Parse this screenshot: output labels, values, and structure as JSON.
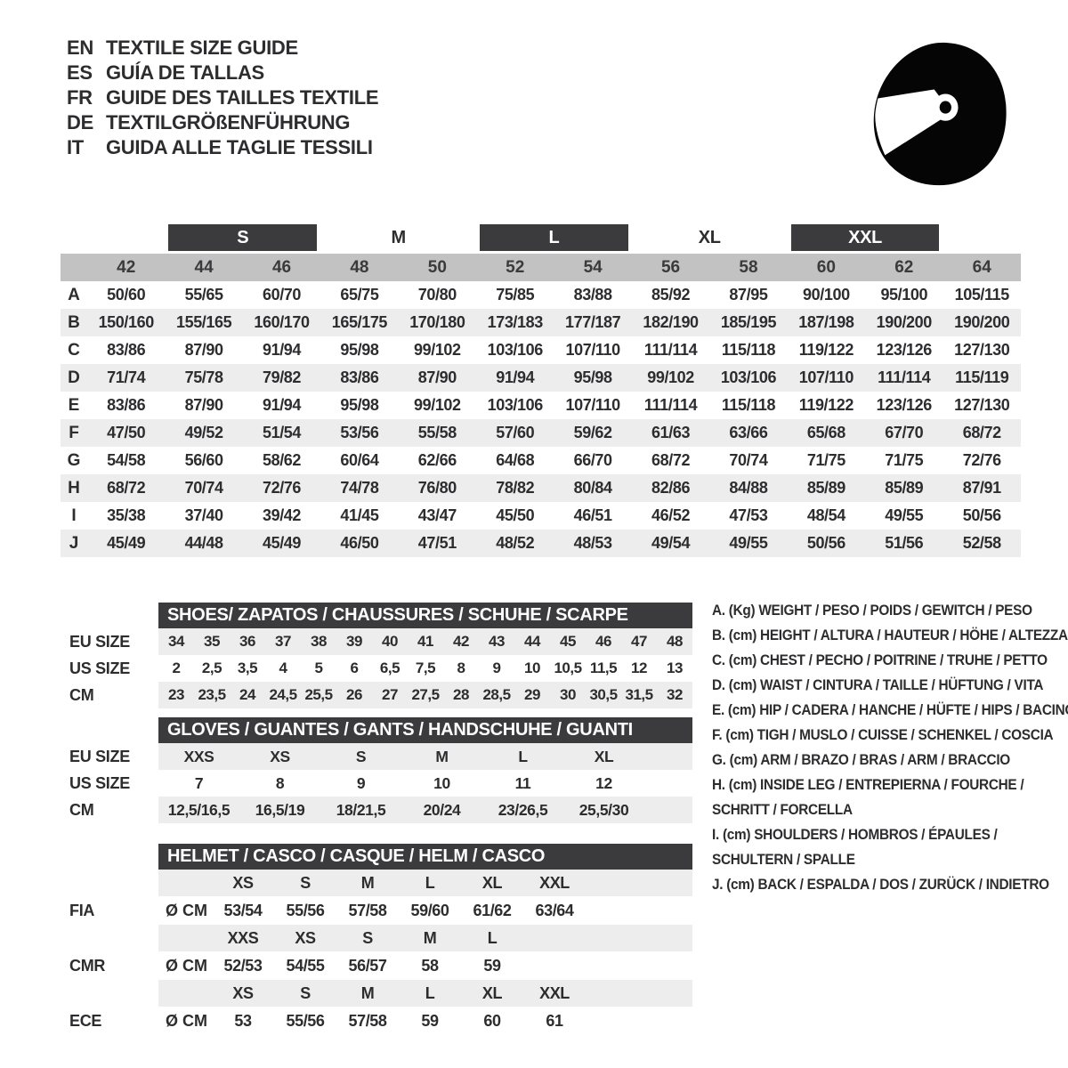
{
  "page_title": "Textile size guide",
  "colors": {
    "dark_bar": "#3b3b3d",
    "band_gray": "#c2c2c2",
    "row_gray": "#ededed",
    "text": "#2d2d2f",
    "icon_black": "#050505",
    "background": "#ffffff"
  },
  "header": {
    "icon": "racing-helmet-icon",
    "languages": [
      {
        "code": "EN",
        "title": "TEXTILE SIZE GUIDE"
      },
      {
        "code": "ES",
        "title": "GUÍA DE TALLAS"
      },
      {
        "code": "FR",
        "title": "GUIDE DES TAILLES TEXTILE"
      },
      {
        "code": "DE",
        "title": "TEXTILGRÖßENFÜHRUNG"
      },
      {
        "code": "IT",
        "title": "GUIDA ALLE TAGLIE TESSILI"
      }
    ]
  },
  "main_size_table": {
    "size_groups": [
      {
        "label": "",
        "span": 2,
        "dark": false
      },
      {
        "label": "S",
        "span": 2,
        "dark": true
      },
      {
        "label": "M",
        "span": 2,
        "dark": false
      },
      {
        "label": "L",
        "span": 2,
        "dark": true
      },
      {
        "label": "XL",
        "span": 2,
        "dark": false
      },
      {
        "label": "XXL",
        "span": 2,
        "dark": true
      },
      {
        "label": "",
        "span": 1,
        "dark": false
      }
    ],
    "numeric_sizes": [
      "42",
      "44",
      "46",
      "48",
      "50",
      "52",
      "54",
      "56",
      "58",
      "60",
      "62",
      "64"
    ],
    "rows": [
      {
        "label": "A",
        "values": [
          "50/60",
          "55/65",
          "60/70",
          "65/75",
          "70/80",
          "75/85",
          "83/88",
          "85/92",
          "87/95",
          "90/100",
          "95/100",
          "105/115"
        ]
      },
      {
        "label": "B",
        "values": [
          "150/160",
          "155/165",
          "160/170",
          "165/175",
          "170/180",
          "173/183",
          "177/187",
          "182/190",
          "185/195",
          "187/198",
          "190/200",
          "190/200"
        ]
      },
      {
        "label": "C",
        "values": [
          "83/86",
          "87/90",
          "91/94",
          "95/98",
          "99/102",
          "103/106",
          "107/110",
          "111/114",
          "115/118",
          "119/122",
          "123/126",
          "127/130"
        ]
      },
      {
        "label": "D",
        "values": [
          "71/74",
          "75/78",
          "79/82",
          "83/86",
          "87/90",
          "91/94",
          "95/98",
          "99/102",
          "103/106",
          "107/110",
          "111/114",
          "115/119"
        ]
      },
      {
        "label": "E",
        "values": [
          "83/86",
          "87/90",
          "91/94",
          "95/98",
          "99/102",
          "103/106",
          "107/110",
          "111/114",
          "115/118",
          "119/122",
          "123/126",
          "127/130"
        ]
      },
      {
        "label": "F",
        "values": [
          "47/50",
          "49/52",
          "51/54",
          "53/56",
          "55/58",
          "57/60",
          "59/62",
          "61/63",
          "63/66",
          "65/68",
          "67/70",
          "68/72"
        ]
      },
      {
        "label": "G",
        "values": [
          "54/58",
          "56/60",
          "58/62",
          "60/64",
          "62/66",
          "64/68",
          "66/70",
          "68/72",
          "70/74",
          "71/75",
          "71/75",
          "72/76"
        ]
      },
      {
        "label": "H",
        "values": [
          "68/72",
          "70/74",
          "72/76",
          "74/78",
          "76/80",
          "78/82",
          "80/84",
          "82/86",
          "84/88",
          "85/89",
          "85/89",
          "87/91"
        ]
      },
      {
        "label": "I",
        "values": [
          "35/38",
          "37/40",
          "39/42",
          "41/45",
          "43/47",
          "45/50",
          "46/51",
          "46/52",
          "47/53",
          "48/54",
          "49/55",
          "50/56"
        ]
      },
      {
        "label": "J",
        "values": [
          "45/49",
          "44/48",
          "45/49",
          "46/50",
          "47/51",
          "48/52",
          "48/53",
          "49/54",
          "49/55",
          "50/56",
          "51/56",
          "52/58"
        ]
      }
    ]
  },
  "shoes_table": {
    "title": "SHOES/ ZAPATOS / CHAUSSURES / SCHUHE / SCARPE",
    "rows": [
      {
        "label": "EU SIZE",
        "values": [
          "34",
          "35",
          "36",
          "37",
          "38",
          "39",
          "40",
          "41",
          "42",
          "43",
          "44",
          "45",
          "46",
          "47",
          "48"
        ]
      },
      {
        "label": "US SIZE",
        "values": [
          "2",
          "2,5",
          "3,5",
          "4",
          "5",
          "6",
          "6,5",
          "7,5",
          "8",
          "9",
          "10",
          "10,5",
          "11,5",
          "12",
          "13"
        ]
      },
      {
        "label": "CM",
        "values": [
          "23",
          "23,5",
          "24",
          "24,5",
          "25,5",
          "26",
          "27",
          "27,5",
          "28",
          "28,5",
          "29",
          "30",
          "30,5",
          "31,5",
          "32"
        ]
      }
    ]
  },
  "gloves_table": {
    "title": "GLOVES / GUANTES / GANTS / HANDSCHUHE / GUANTI",
    "rows": [
      {
        "label": "EU SIZE",
        "values": [
          "XXS",
          "XS",
          "S",
          "M",
          "L",
          "XL"
        ]
      },
      {
        "label": "US SIZE",
        "values": [
          "7",
          "8",
          "9",
          "10",
          "11",
          "12"
        ]
      },
      {
        "label": "CM",
        "values": [
          "12,5/16,5",
          "16,5/19",
          "18/21,5",
          "20/24",
          "23/26,5",
          "25,5/30"
        ]
      }
    ]
  },
  "helmet_table": {
    "title": "HELMET / CASCO / CASQUE / HELM / CASCO",
    "rows": [
      {
        "type": "sizes",
        "label": "",
        "lead": "",
        "values": [
          "XS",
          "S",
          "M",
          "L",
          "XL",
          "XXL"
        ]
      },
      {
        "type": "data",
        "label": "FIA",
        "lead": "Ø CM",
        "values": [
          "53/54",
          "55/56",
          "57/58",
          "59/60",
          "61/62",
          "63/64"
        ]
      },
      {
        "type": "sizes",
        "label": "",
        "lead": "",
        "values": [
          "XXS",
          "XS",
          "S",
          "M",
          "L"
        ]
      },
      {
        "type": "data",
        "label": "CMR",
        "lead": "Ø CM",
        "values": [
          "52/53",
          "54/55",
          "56/57",
          "58",
          "59"
        ]
      },
      {
        "type": "sizes",
        "label": "",
        "lead": "",
        "values": [
          "XS",
          "S",
          "M",
          "L",
          "XL",
          "XXL"
        ]
      },
      {
        "type": "data",
        "label": "ECE",
        "lead": "Ø CM",
        "values": [
          "53",
          "55/56",
          "57/58",
          "59",
          "60",
          "61"
        ]
      }
    ]
  },
  "legend": {
    "items": [
      [
        "A. (Kg) WEIGHT / PESO / POIDS / GEWITCH / PESO"
      ],
      [
        "B. (cm) HEIGHT / ALTURA / HAUTEUR / HÖHE / ALTEZZA"
      ],
      [
        "C. (cm) CHEST / PECHO / POITRINE / TRUHE / PETTO"
      ],
      [
        "D. (cm) WAIST / CINTURA / TAILLE / HÜFTUNG / VITA"
      ],
      [
        "E. (cm) HIP / CADERA / HANCHE / HÜFTE / HIPS / BACINO"
      ],
      [
        "F. (cm) TIGH / MUSLO / CUISSE / SCHENKEL / COSCIA"
      ],
      [
        "G. (cm) ARM / BRAZO / BRAS / ARM / BRACCIO"
      ],
      [
        "H. (cm) INSIDE LEG / ENTREPIERNA / FOURCHE /",
        "SCHRITT / FORCELLA"
      ],
      [
        "I. (cm) SHOULDERS / HOMBROS / ÉPAULES /",
        "SCHULTERN / SPALLE"
      ],
      [
        "J. (cm) BACK / ESPALDA / DOS / ZURÜCK / INDIETRO"
      ]
    ]
  }
}
